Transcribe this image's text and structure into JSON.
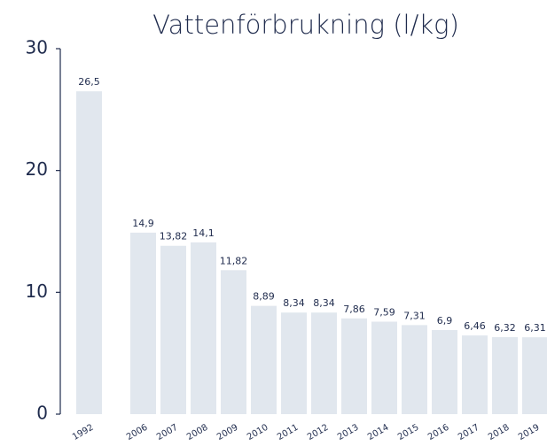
{
  "chart_data": {
    "type": "bar",
    "title": "Vattenförbrukning (l/kg)",
    "categories": [
      "1992",
      "2006",
      "2007",
      "2008",
      "2009",
      "2010",
      "2011",
      "2012",
      "2013",
      "2014",
      "2015",
      "2016",
      "2017",
      "2018",
      "2019"
    ],
    "values": [
      26.5,
      14.9,
      13.82,
      14.1,
      11.82,
      8.89,
      8.34,
      8.34,
      7.86,
      7.59,
      7.31,
      6.9,
      6.46,
      6.32,
      6.31
    ],
    "value_labels": [
      "26,5",
      "14,9",
      "13,82",
      "14,1",
      "11,82",
      "8,89",
      "8,34",
      "8,34",
      "7,86",
      "7,59",
      "7,31",
      "6,9",
      "6,46",
      "6,32",
      "6,31"
    ],
    "color": "#e1e7ee",
    "ylim": [
      0,
      30
    ],
    "yticks": [
      0,
      10,
      20,
      30
    ],
    "grid": false
  }
}
